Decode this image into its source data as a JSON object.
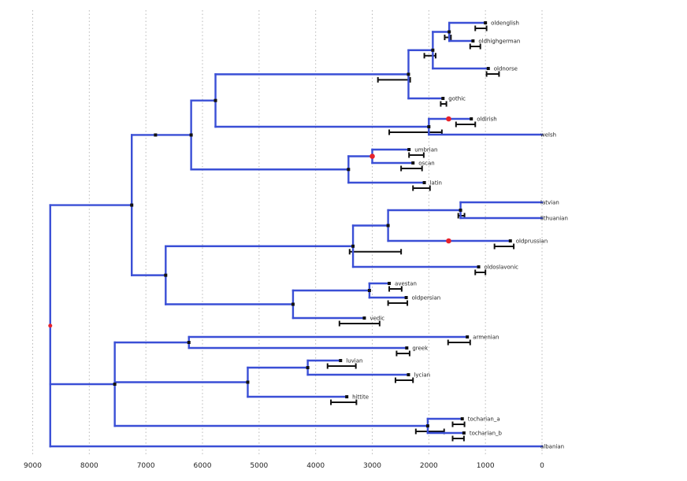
{
  "axis": {
    "domain": [
      9000,
      0
    ],
    "ticks": [
      9000,
      8000,
      7000,
      6000,
      5000,
      4000,
      3000,
      2000,
      1000,
      0
    ],
    "gridlines": true
  },
  "colors": {
    "branch": "#3a4fd6",
    "interval": "#111111",
    "highlight": "#e8232a",
    "grid": "#b8b8b8"
  },
  "tree": {
    "root": {
      "age": 8690,
      "highlight": true,
      "children": [
        {
          "age": 7250,
          "children": [
            {
              "age": 6830,
              "children": [
                {
                  "age": 6200,
                  "children": [
                    {
                      "age": 5770,
                      "children": [
                        {
                          "age": 2360,
                          "ci": [
                            2900,
                            2330
                          ],
                          "children": [
                            {
                              "age": 1930,
                              "ci": [
                                2080,
                                1880
                              ],
                              "children": [
                                {
                                  "age": 1640,
                                  "ci": [
                                    1720,
                                    1610
                                  ],
                                  "children": [
                                    {
                                      "label": "oldenglish",
                                      "age": 1000,
                                      "ci": [
                                        1180,
                                        980
                                      ]
                                    },
                                    {
                                      "label": "oldhighgerman",
                                      "age": 1220,
                                      "ci": [
                                        1270,
                                        1090
                                      ]
                                    }
                                  ]
                                },
                                {
                                  "label": "oldnorse",
                                  "age": 950,
                                  "ci": [
                                    980,
                                    760
                                  ]
                                }
                              ]
                            },
                            {
                              "label": "gothic",
                              "age": 1750,
                              "ci": [
                                1790,
                                1690
                              ]
                            }
                          ]
                        },
                        {
                          "age": 2000,
                          "ci": [
                            2700,
                            1770
                          ],
                          "children": [
                            {
                              "age": 1650,
                              "highlight": true,
                              "children": [
                                {
                                  "label": "oldirish",
                                  "age": 1250,
                                  "ci": [
                                    1520,
                                    1180
                                  ]
                                }
                              ]
                            },
                            {
                              "label": "welsh",
                              "age": 0
                            }
                          ]
                        }
                      ]
                    },
                    {
                      "age": 3420,
                      "children": [
                        {
                          "age": 3000,
                          "highlight": true,
                          "children": [
                            {
                              "label": "umbrian",
                              "age": 2350,
                              "ci": [
                                2350,
                                2090
                              ]
                            },
                            {
                              "label": "oscan",
                              "age": 2280,
                              "ci": [
                                2490,
                                2120
                              ]
                            }
                          ]
                        },
                        {
                          "label": "latin",
                          "age": 2080,
                          "ci": [
                            2280,
                            1980
                          ]
                        }
                      ]
                    }
                  ]
                }
              ]
            },
            {
              "age": 6650,
              "children": [
                {
                  "age": 3340,
                  "ci": [
                    3400,
                    2490
                  ],
                  "children": [
                    {
                      "age": 2720,
                      "children": [
                        {
                          "age": 1440,
                          "ci": [
                            1480,
                            1370
                          ],
                          "children": [
                            {
                              "label": "latvian",
                              "age": 0
                            },
                            {
                              "label": "lithuanian",
                              "age": 0
                            }
                          ]
                        },
                        {
                          "age": 1650,
                          "highlight": true,
                          "children": [
                            {
                              "label": "oldprussian",
                              "age": 560,
                              "ci": [
                                840,
                                500
                              ]
                            }
                          ]
                        }
                      ]
                    },
                    {
                      "label": "oldoslavonic",
                      "age": 1120,
                      "ci": [
                        1180,
                        1000
                      ]
                    }
                  ]
                },
                {
                  "age": 4400,
                  "children": [
                    {
                      "age": 3050,
                      "children": [
                        {
                          "label": "avestan",
                          "age": 2700,
                          "ci": [
                            2700,
                            2480
                          ]
                        },
                        {
                          "label": "oldpersian",
                          "age": 2400,
                          "ci": [
                            2720,
                            2380
                          ]
                        }
                      ]
                    },
                    {
                      "label": "vedic",
                      "age": 3140,
                      "ci": [
                        3580,
                        2870
                      ]
                    }
                  ]
                }
              ]
            }
          ]
        },
        {
          "age": 7550,
          "children": [
            {
              "age": 6240,
              "children": [
                {
                  "label": "armenian",
                  "age": 1320,
                  "ci": [
                    1660,
                    1270
                  ]
                },
                {
                  "label": "greek",
                  "age": 2390,
                  "ci": [
                    2570,
                    2340
                  ]
                }
              ]
            },
            {
              "age": 5200,
              "children": [
                {
                  "age": 4140,
                  "children": [
                    {
                      "label": "luvian",
                      "age": 3560,
                      "ci": [
                        3790,
                        3290
                      ]
                    },
                    {
                      "label": "lycian",
                      "age": 2360,
                      "ci": [
                        2590,
                        2280
                      ]
                    }
                  ]
                },
                {
                  "label": "hittite",
                  "age": 3450,
                  "ci": [
                    3730,
                    3280
                  ]
                }
              ]
            },
            {
              "age": 2020,
              "ci": [
                2230,
                1730
              ],
              "children": [
                {
                  "label": "tocharian_a",
                  "age": 1410,
                  "ci": [
                    1580,
                    1370
                  ]
                },
                {
                  "label": "tocharian_b",
                  "age": 1380,
                  "ci": [
                    1580,
                    1380
                  ]
                }
              ]
            }
          ]
        },
        {
          "label": "albanian",
          "age": 0
        }
      ]
    }
  }
}
